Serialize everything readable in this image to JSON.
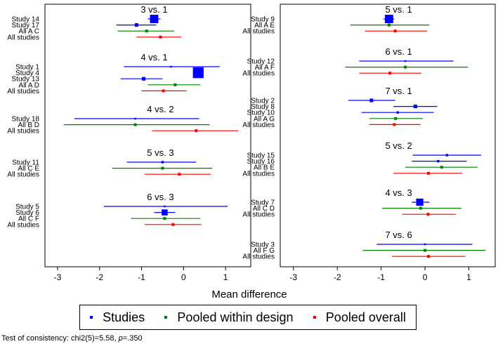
{
  "chart_data": {
    "type": "forest",
    "xlabel": "Mean difference",
    "xlim": [
      -3.3,
      1.6
    ],
    "xticks": [
      -3,
      -2,
      -1,
      0,
      1
    ],
    "series_colors": {
      "study": "#0000ff",
      "design": "#008000",
      "overall": "#ff0000"
    },
    "panels": [
      {
        "groups": [
          {
            "title": "3 vs. 1",
            "rows": [
              {
                "label": "Study 14",
                "kind": "study",
                "est": -0.7,
                "lo": -0.85,
                "hi": -0.55,
                "weight": 3.5
              },
              {
                "label": "Study 17",
                "kind": "study",
                "est": -1.12,
                "lo": -1.6,
                "hi": -0.65,
                "weight": 1.5
              },
              {
                "label": "All A C",
                "kind": "design",
                "est": -0.88,
                "lo": -1.57,
                "hi": -0.22
              },
              {
                "label": "All studies",
                "kind": "overall",
                "est": -0.55,
                "lo": -1.12,
                "hi": -0.05
              }
            ]
          },
          {
            "title": "4 vs. 1",
            "rows": [
              {
                "label": "Study 1",
                "kind": "study",
                "est": -0.3,
                "lo": -1.42,
                "hi": 0.86,
                "weight": 0.5
              },
              {
                "label": "Study 4",
                "kind": "study",
                "est": 0.35,
                "lo": 0.35,
                "hi": 0.35,
                "weight": 4.5
              },
              {
                "label": "Study 13",
                "kind": "study",
                "est": -0.95,
                "lo": -1.5,
                "hi": -0.5,
                "weight": 1.5
              },
              {
                "label": "All A D",
                "kind": "design",
                "est": -0.2,
                "lo": -0.85,
                "hi": 0.4
              },
              {
                "label": "All studies",
                "kind": "overall",
                "est": -0.48,
                "lo": -1.0,
                "hi": 0.07
              }
            ]
          },
          {
            "title": "4 vs. 2",
            "rows": [
              {
                "label": "Study 18",
                "kind": "study",
                "est": -1.15,
                "lo": -2.6,
                "hi": 0.37,
                "weight": 0.5
              },
              {
                "label": "All B D",
                "kind": "design",
                "est": -1.15,
                "lo": -2.85,
                "hi": 0.62
              },
              {
                "label": "All studies",
                "kind": "overall",
                "est": 0.3,
                "lo": -0.75,
                "hi": 1.3
              }
            ]
          },
          {
            "title": "5 vs. 3",
            "rows": [
              {
                "label": "Study 11",
                "kind": "study",
                "est": -0.5,
                "lo": -1.35,
                "hi": 0.3,
                "weight": 1.0
              },
              {
                "label": "All C E",
                "kind": "design",
                "est": -0.5,
                "lo": -1.7,
                "hi": 0.68
              },
              {
                "label": "All studies",
                "kind": "overall",
                "est": -0.1,
                "lo": -0.93,
                "hi": 0.65
              }
            ]
          },
          {
            "title": "6 vs. 3",
            "rows": [
              {
                "label": "Study 5",
                "kind": "study",
                "est": -0.45,
                "lo": -1.9,
                "hi": 1.05,
                "weight": 0.5
              },
              {
                "label": "Study 6",
                "kind": "study",
                "est": -0.45,
                "lo": -0.7,
                "hi": -0.2,
                "weight": 2.5
              },
              {
                "label": "All C F",
                "kind": "design",
                "est": -0.45,
                "lo": -1.25,
                "hi": 0.4
              },
              {
                "label": "All studies",
                "kind": "overall",
                "est": -0.25,
                "lo": -0.93,
                "hi": 0.42
              }
            ]
          }
        ]
      },
      {
        "groups": [
          {
            "title": "5 vs. 1",
            "rows": [
              {
                "label": "Study 9",
                "kind": "study",
                "est": -0.82,
                "lo": -0.95,
                "hi": -0.7,
                "weight": 3.5
              },
              {
                "label": "All A E",
                "kind": "design",
                "est": -0.82,
                "lo": -1.7,
                "hi": 0.1
              },
              {
                "label": "All studies",
                "kind": "overall",
                "est": -0.68,
                "lo": -1.37,
                "hi": 0.05
              }
            ]
          },
          {
            "title": "6 vs. 1",
            "rows": [
              {
                "label": "Study 12",
                "kind": "study",
                "est": -0.45,
                "lo": -1.5,
                "hi": 0.65,
                "weight": 0.5
              },
              {
                "label": "All A F",
                "kind": "design",
                "est": -0.45,
                "lo": -1.82,
                "hi": 0.98
              },
              {
                "label": "All studies",
                "kind": "overall",
                "est": -0.8,
                "lo": -1.5,
                "hi": -0.08
              }
            ]
          },
          {
            "title": "7 vs. 1",
            "rows": [
              {
                "label": "Study 2",
                "kind": "study",
                "est": -1.22,
                "lo": -1.75,
                "hi": -0.68,
                "weight": 1.5
              },
              {
                "label": "Study 8",
                "kind": "study",
                "est": -0.22,
                "lo": -0.72,
                "hi": 0.28,
                "weight": 1.5
              },
              {
                "label": "Study 10",
                "kind": "study",
                "est": -0.62,
                "lo": -1.45,
                "hi": 0.2,
                "weight": 1.0
              },
              {
                "label": "All A G",
                "kind": "design",
                "est": -0.67,
                "lo": -1.27,
                "hi": -0.05
              },
              {
                "label": "All studies",
                "kind": "overall",
                "est": -0.7,
                "lo": -1.27,
                "hi": -0.1
              }
            ]
          },
          {
            "title": "5 vs. 2",
            "rows": [
              {
                "label": "Study 15",
                "kind": "study",
                "est": 0.5,
                "lo": -0.28,
                "hi": 1.28,
                "weight": 1.0
              },
              {
                "label": "Study 16",
                "kind": "study",
                "est": 0.3,
                "lo": -0.3,
                "hi": 0.95,
                "weight": 1.0
              },
              {
                "label": "All B E",
                "kind": "design",
                "est": 0.38,
                "lo": -0.45,
                "hi": 1.2
              },
              {
                "label": "All studies",
                "kind": "overall",
                "est": 0.08,
                "lo": -0.72,
                "hi": 0.85
              }
            ]
          },
          {
            "title": "4 vs. 3",
            "rows": [
              {
                "label": "Study 7",
                "kind": "study",
                "est": -0.12,
                "lo": -0.3,
                "hi": 0.1,
                "weight": 3.0
              },
              {
                "label": "All C D",
                "kind": "design",
                "est": -0.1,
                "lo": -0.98,
                "hi": 0.83
              },
              {
                "label": "All studies",
                "kind": "overall",
                "est": 0.07,
                "lo": -0.52,
                "hi": 0.7
              }
            ]
          },
          {
            "title": "7 vs. 6",
            "rows": [
              {
                "label": "Study 3",
                "kind": "study",
                "est": 0.0,
                "lo": -1.1,
                "hi": 1.08,
                "weight": 0.5
              },
              {
                "label": "All F G",
                "kind": "design",
                "est": 0.0,
                "lo": -1.42,
                "hi": 1.38
              },
              {
                "label": "All studies",
                "kind": "overall",
                "est": 0.08,
                "lo": -0.75,
                "hi": 0.92
              }
            ]
          }
        ]
      }
    ]
  },
  "legend": {
    "studies_label": "Studies",
    "design_label": "Pooled within design",
    "overall_label": "Pooled overall"
  },
  "footnote": {
    "prefix": "Test of consistency: chi2(5)=5.58, ",
    "p_symbol": "p",
    "suffix": "=.350"
  }
}
